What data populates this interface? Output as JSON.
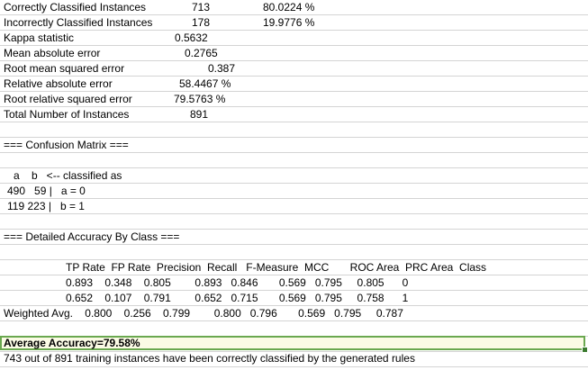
{
  "summary": [
    {
      "label": "Correctly Classified Instances",
      "value": "713",
      "pct": "80.0224 %"
    },
    {
      "label": "Incorrectly Classified Instances",
      "value": "178",
      "pct": "19.9776 %"
    },
    {
      "label": "Kappa statistic",
      "value": "0.5632"
    },
    {
      "label": "Mean absolute error",
      "value": "0.2765"
    },
    {
      "label": "Root mean squared error",
      "value": "0.387"
    },
    {
      "label": "Relative absolute error",
      "value": "58.4467 %"
    },
    {
      "label": "Root relative squared error",
      "value": "79.5763 %"
    },
    {
      "label": "Total Number of Instances",
      "value": "891"
    }
  ],
  "confusion": {
    "heading": "=== Confusion Matrix ===",
    "header": "a    b   <-- classified as",
    "row0": "490   59 |   a = 0",
    "row1": "119 223 |   b = 1"
  },
  "detailed": {
    "heading": "=== Detailed Accuracy By Class ===",
    "header": "TP Rate  FP Rate  Precision  Recall   F-Measure  MCC       ROC Area  PRC Area  Class",
    "row0": "0.893    0.348    0.805        0.893   0.846       0.569   0.795     0.805      0",
    "row1": "0.652    0.107    0.791        0.652   0.715       0.569   0.795     0.758      1",
    "weighted": "Weighted Avg.    0.800    0.256    0.799        0.800   0.796       0.569   0.795     0.787"
  },
  "average_accuracy": "Average Accuracy=79.58%",
  "footer_note": "743 out of 891 training instances have been correctly classified by the generated rules"
}
